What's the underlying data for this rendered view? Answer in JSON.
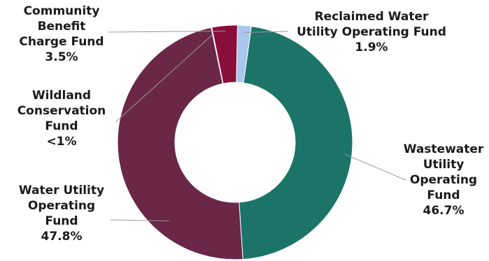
{
  "chart_data": {
    "type": "pie",
    "style": "donut",
    "title": "",
    "slices": [
      {
        "key": "reclaimed",
        "label_lines": [
          "Reclaimed Water",
          "Utility Operating Fund",
          "1.9%"
        ],
        "value": 1.9,
        "color": "#a9c6ef"
      },
      {
        "key": "wastewater",
        "label_lines": [
          "Wastewater",
          "Utility",
          "Operating",
          "Fund",
          "46.7%"
        ],
        "value": 46.7,
        "color": "#1c7468"
      },
      {
        "key": "water",
        "label_lines": [
          "Water Utility",
          "Operating",
          "Fund",
          "47.8%"
        ],
        "value": 47.8,
        "color": "#6b2748"
      },
      {
        "key": "wildland",
        "label_lines": [
          "Wildland",
          "Conservation",
          "Fund",
          "<1%"
        ],
        "value": 0.1,
        "color": "#6b2748"
      },
      {
        "key": "community",
        "label_lines": [
          "Community",
          "Benefit",
          "Charge Fund",
          "3.5%"
        ],
        "value": 3.5,
        "color": "#8a0e3c"
      }
    ],
    "legend": "none"
  }
}
